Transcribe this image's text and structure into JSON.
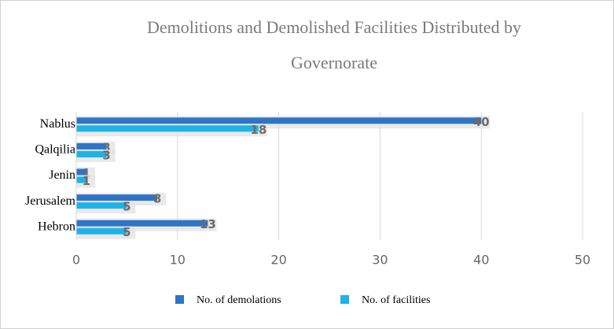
{
  "chart_data": {
    "type": "hbar",
    "title": "Demolitions and Demolished Facilities Distributed by Governorate",
    "categories": [
      "Hebron",
      "Jerusalem",
      "Jenin",
      "Qalqilia",
      "Nablus"
    ],
    "series": [
      {
        "name": "No. of demolations",
        "color": "#2e75c5",
        "values": [
          13,
          8,
          1,
          3,
          40
        ]
      },
      {
        "name": "No. of facilities",
        "color": "#1fb2e6",
        "values": [
          5,
          5,
          1,
          3,
          18
        ]
      }
    ],
    "xlim": [
      0,
      50
    ],
    "xticks": [
      0,
      10,
      20,
      30,
      40,
      50
    ],
    "grid": true,
    "legend": "bottom"
  }
}
